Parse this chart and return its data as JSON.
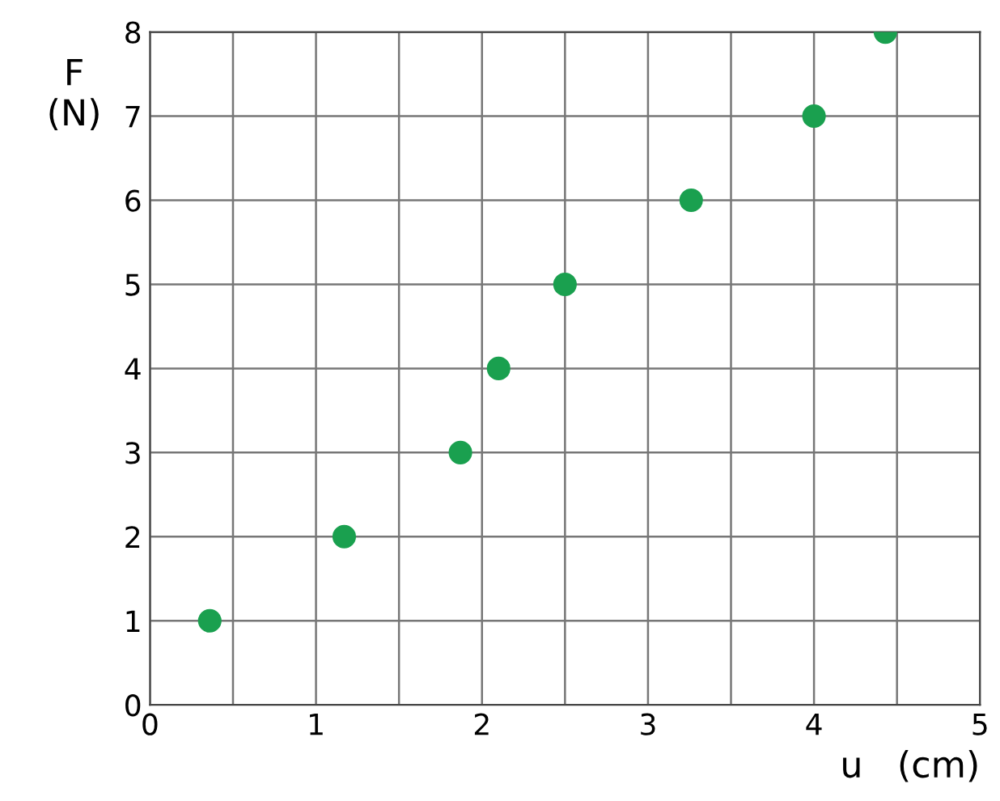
{
  "chart_data": {
    "type": "scatter",
    "xlabel": "u   (cm)",
    "ylabel": "F\n(N)",
    "x": [
      0.36,
      1.17,
      1.87,
      2.1,
      2.5,
      3.26,
      4.0,
      4.43
    ],
    "series": [
      {
        "color": "#1aa04f",
        "values": [
          1,
          2,
          3,
          4,
          5,
          6,
          7,
          8
        ]
      }
    ],
    "xlim": [
      0,
      5
    ],
    "ylim": [
      0,
      8
    ],
    "xticks": [
      0,
      {
        "value": 0.5,
        "label": null
      },
      1,
      {
        "value": 1.5,
        "label": null
      },
      2,
      {
        "value": 2.5,
        "label": null
      },
      3,
      {
        "value": 3.5,
        "label": null
      },
      4,
      {
        "value": 4.5,
        "label": null
      },
      5
    ],
    "yticks": [
      0,
      1,
      2,
      3,
      4,
      5,
      6,
      7,
      8
    ],
    "grid": true,
    "marker": "circle"
  }
}
